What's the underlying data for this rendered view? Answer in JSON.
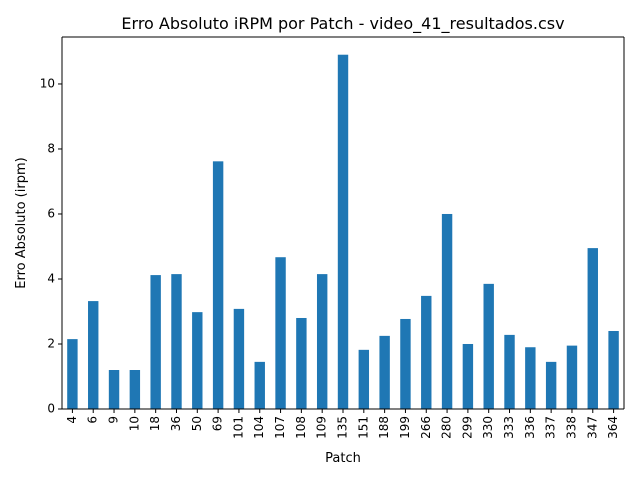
{
  "chart_data": {
    "type": "bar",
    "title": "Erro Absoluto iRPM por Patch - video_41_resultados.csv",
    "xlabel": "Patch",
    "ylabel": "Erro Absoluto (irpm)",
    "categories": [
      "4",
      "6",
      "9",
      "10",
      "18",
      "36",
      "50",
      "69",
      "101",
      "104",
      "107",
      "108",
      "109",
      "135",
      "151",
      "188",
      "199",
      "266",
      "280",
      "299",
      "330",
      "333",
      "336",
      "337",
      "338",
      "347",
      "364"
    ],
    "values": [
      2.15,
      3.32,
      1.2,
      1.2,
      4.12,
      4.15,
      2.98,
      7.62,
      3.08,
      1.45,
      4.67,
      2.8,
      4.15,
      10.9,
      1.82,
      2.25,
      2.77,
      3.48,
      6.0,
      2.0,
      3.85,
      2.28,
      1.9,
      1.45,
      1.95,
      4.95,
      2.4
    ],
    "ylim": [
      0,
      11.445
    ],
    "yticks": [
      0,
      2,
      4,
      6,
      8,
      10
    ],
    "bar_color": "#1f77b4",
    "grid": false,
    "legend": "none"
  }
}
